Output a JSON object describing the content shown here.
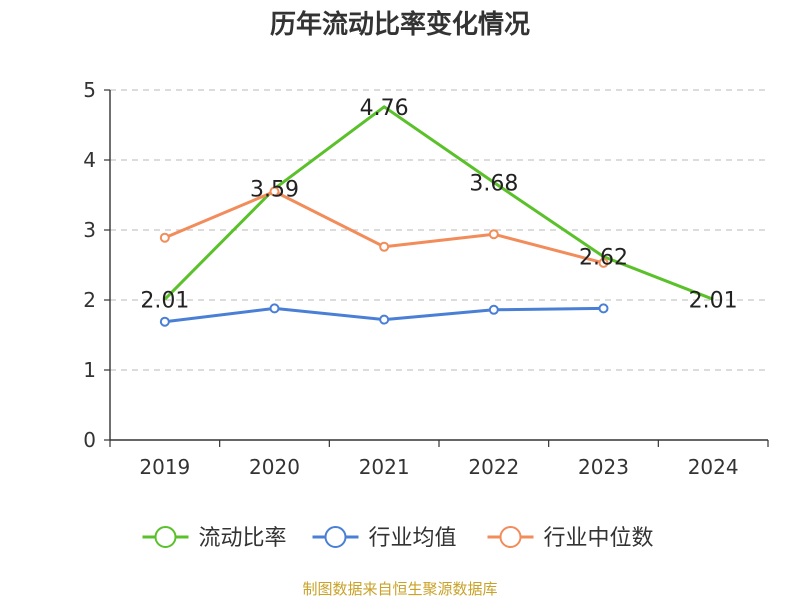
{
  "chart_data": {
    "type": "line",
    "title": "历年流动比率变化情况",
    "xlabel": "",
    "ylabel": "",
    "categories": [
      "2019",
      "2020",
      "2021",
      "2022",
      "2023",
      "2024"
    ],
    "ylim": [
      0,
      5
    ],
    "yticks": [
      0,
      1,
      2,
      3,
      4,
      5
    ],
    "grid": true,
    "legend_position": "bottom",
    "series": [
      {
        "name": "流动比率",
        "color": "#5ac12a",
        "marker": "none",
        "values": [
          2.01,
          3.59,
          4.76,
          3.68,
          2.62,
          2.01
        ],
        "labels": [
          "2.01",
          "3.59",
          "4.76",
          "3.68",
          "2.62",
          "2.01"
        ]
      },
      {
        "name": "行业均值",
        "color": "#4a7fd6",
        "marker": "circle",
        "values": [
          1.69,
          1.88,
          1.72,
          1.86,
          1.88,
          null
        ]
      },
      {
        "name": "行业中位数",
        "color": "#f28c5a",
        "marker": "circle",
        "values": [
          2.89,
          3.55,
          2.76,
          2.94,
          2.53,
          null
        ]
      }
    ]
  },
  "footer": {
    "source": "制图数据来自恒生聚源数据库"
  }
}
